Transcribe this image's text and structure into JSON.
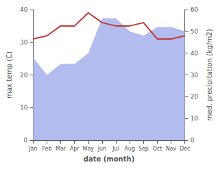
{
  "chart_data": {
    "type": "line",
    "xlabel": "date (month)",
    "ylabel": "max temp (C)",
    "y2label": "med. precipitation (kg/m2)",
    "categories": [
      "Jan",
      "Feb",
      "Mar",
      "Apr",
      "May",
      "Jun",
      "Jul",
      "Aug",
      "Sep",
      "Oct",
      "Nov",
      "Dec"
    ],
    "series": [
      {
        "type": "area",
        "axis": "y2",
        "color": "#b3bcee",
        "values": [
          38,
          30,
          35,
          35,
          40,
          56,
          56,
          50,
          48,
          52,
          52,
          50
        ]
      },
      {
        "type": "line",
        "color": "#be3a34",
        "values": [
          31,
          32,
          35,
          35,
          39,
          36,
          35,
          35,
          36,
          31,
          31,
          32
        ]
      }
    ],
    "ylim": [
      0,
      40
    ],
    "yticks": [
      0,
      10,
      20,
      30,
      40
    ],
    "y2lim": [
      0,
      60
    ],
    "y2ticks": [
      0,
      10,
      20,
      30,
      40,
      50,
      60
    ],
    "grid": false
  }
}
